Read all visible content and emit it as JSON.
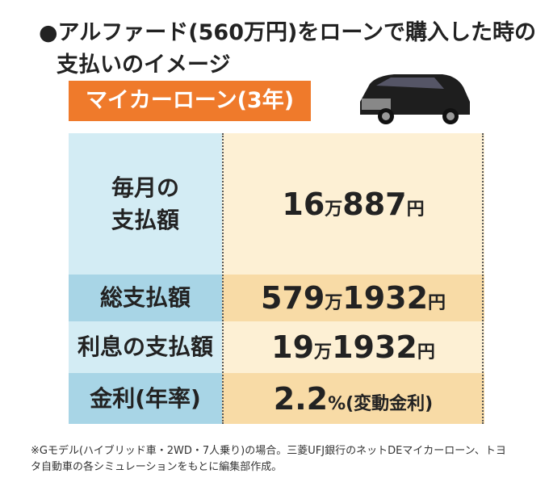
{
  "header": {
    "title_lines": [
      "●アルファード(560万円)をローンで購入した時の",
      "支払いのイメージ"
    ]
  },
  "badge": "マイカーローン(3年)",
  "table": {
    "rows": [
      {
        "label_lines": [
          "毎月の",
          "支払額"
        ],
        "value": "16万887円"
      },
      {
        "label_lines": [
          "総支払額"
        ],
        "value": "579万1932円"
      },
      {
        "label_lines": [
          "利息の支払額"
        ],
        "value": "19万1932円"
      },
      {
        "label_lines": [
          "金利(年率)"
        ],
        "value": "2.2%(変動金利)"
      }
    ]
  },
  "footnote_lines": [
    "※Gモデル(ハイブリッド車・2WD・7人乗り)の場合。三菱UFJ銀行のネットDEマイカーローン、トヨ",
    "タ自動車の各シミュレーションをもとに編集部作成。"
  ]
}
